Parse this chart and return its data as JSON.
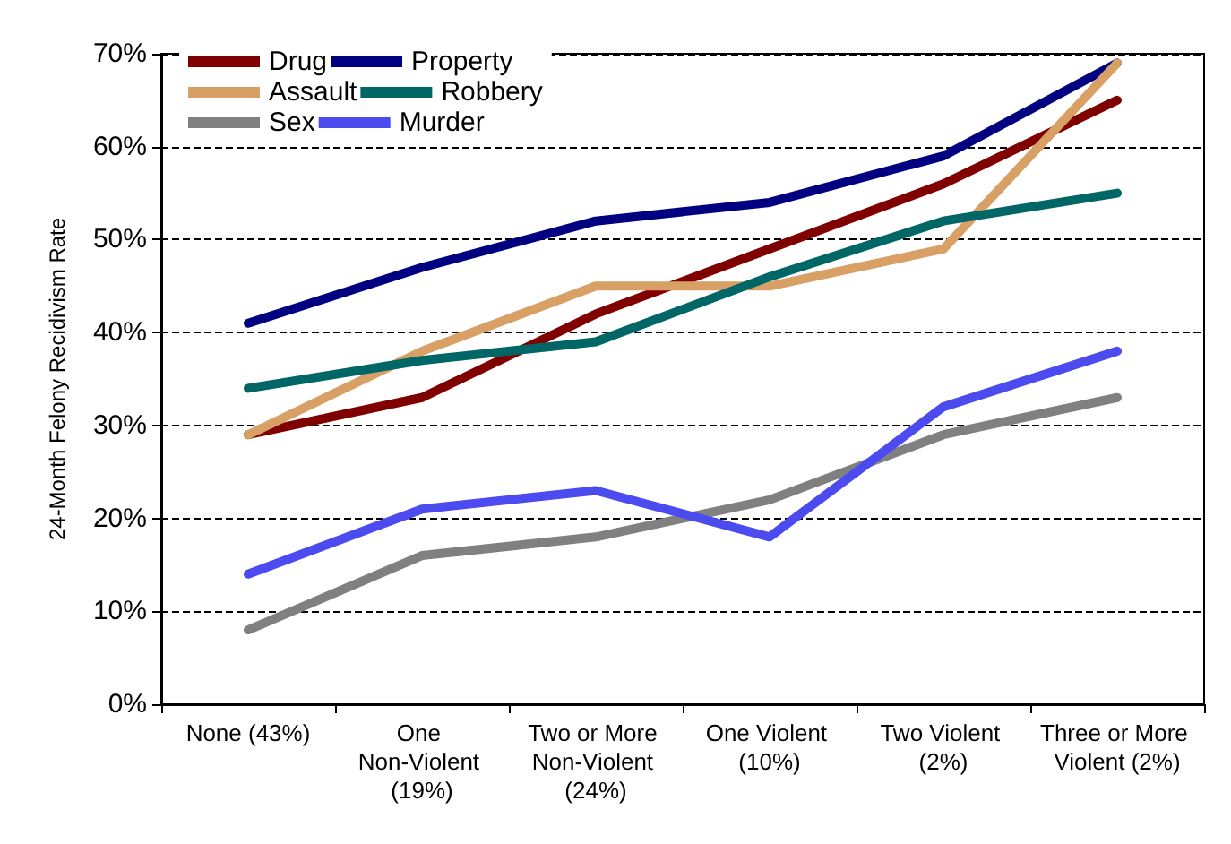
{
  "chart_data": {
    "type": "line",
    "ylabel": "24-Month Felony Recidivism Rate",
    "categories": [
      "None (43%)",
      "One Non-Violent (19%)",
      "Two or More Non-Violent (24%)",
      "One Violent (10%)",
      "Two Violent (2%)",
      "Three or More Violent (2%)"
    ],
    "series": [
      {
        "name": "Drug",
        "color": "#800000",
        "values": [
          29,
          33,
          42,
          49,
          56,
          65
        ]
      },
      {
        "name": "Property",
        "color": "#000080",
        "values": [
          41,
          47,
          52,
          54,
          59,
          69
        ]
      },
      {
        "name": "Assault",
        "color": "#d9a066",
        "values": [
          29,
          38,
          45,
          45,
          49,
          69
        ]
      },
      {
        "name": "Robbery",
        "color": "#006666",
        "values": [
          34,
          37,
          39,
          46,
          52,
          55
        ]
      },
      {
        "name": "Sex",
        "color": "#808080",
        "values": [
          8,
          16,
          18,
          22,
          29,
          33
        ]
      },
      {
        "name": "Murder",
        "color": "#4b4bef",
        "values": [
          14,
          21,
          23,
          18,
          32,
          38
        ]
      }
    ],
    "ylim": [
      0,
      70
    ],
    "yticks": [
      {
        "value": 0,
        "label": "0%"
      },
      {
        "value": 10,
        "label": "10%"
      },
      {
        "value": 20,
        "label": "20%"
      },
      {
        "value": 30,
        "label": "30%"
      },
      {
        "value": 40,
        "label": "40%"
      },
      {
        "value": 50,
        "label": "50%"
      },
      {
        "value": 60,
        "label": "60%"
      },
      {
        "value": 70,
        "label": "70%"
      }
    ],
    "grid": "y",
    "legend": "top left",
    "marker": "none",
    "line_style": "solid"
  }
}
